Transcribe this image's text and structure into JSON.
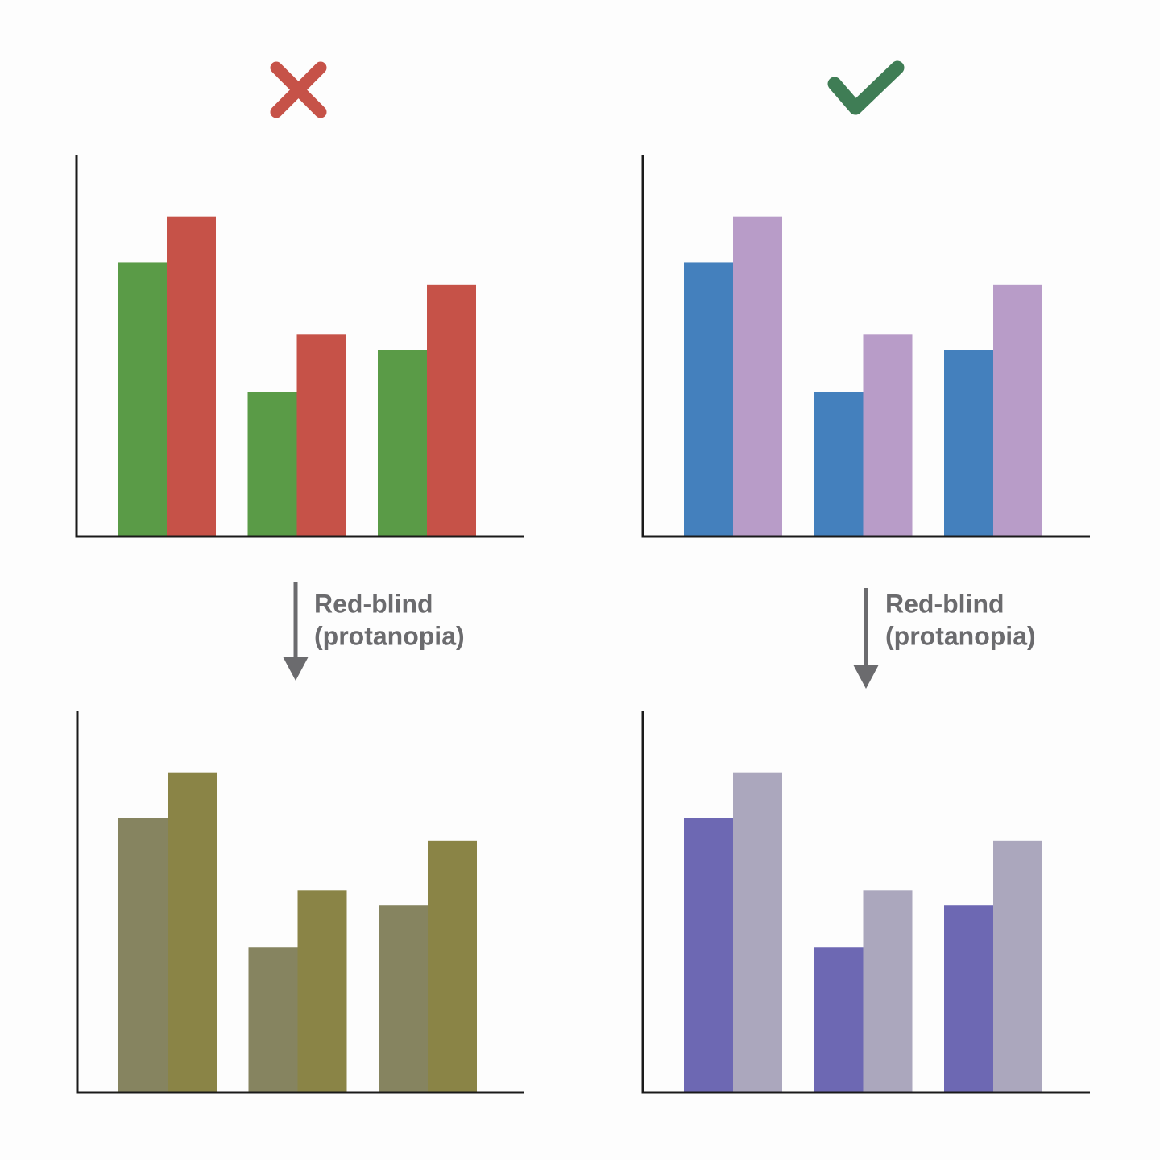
{
  "chart_data": [
    {
      "type": "bar",
      "ylim": [
        0,
        100
      ],
      "series": [
        {
          "color": "#5a9b47",
          "values": [
            72,
            38,
            49
          ]
        },
        {
          "color": "#c65248",
          "values": [
            84,
            53,
            66
          ]
        }
      ]
    },
    {
      "type": "bar",
      "ylim": [
        0,
        100
      ],
      "series": [
        {
          "color": "#4480bd",
          "values": [
            72,
            38,
            49
          ]
        },
        {
          "color": "#b89cc8",
          "values": [
            84,
            53,
            66
          ]
        }
      ]
    },
    {
      "type": "bar",
      "ylim": [
        0,
        100
      ],
      "annotation_lines": [
        "Red-blind",
        "(protanopia)"
      ],
      "series": [
        {
          "color": "#868460",
          "values": [
            72,
            38,
            49
          ]
        },
        {
          "color": "#8a8446",
          "values": [
            84,
            53,
            66
          ]
        }
      ]
    },
    {
      "type": "bar",
      "ylim": [
        0,
        100
      ],
      "annotation_lines": [
        "Red-blind",
        "(protanopia)"
      ],
      "series": [
        {
          "color": "#6d68b3",
          "values": [
            72,
            38,
            49
          ]
        },
        {
          "color": "#aba7bd",
          "values": [
            84,
            53,
            66
          ]
        }
      ]
    }
  ]
}
